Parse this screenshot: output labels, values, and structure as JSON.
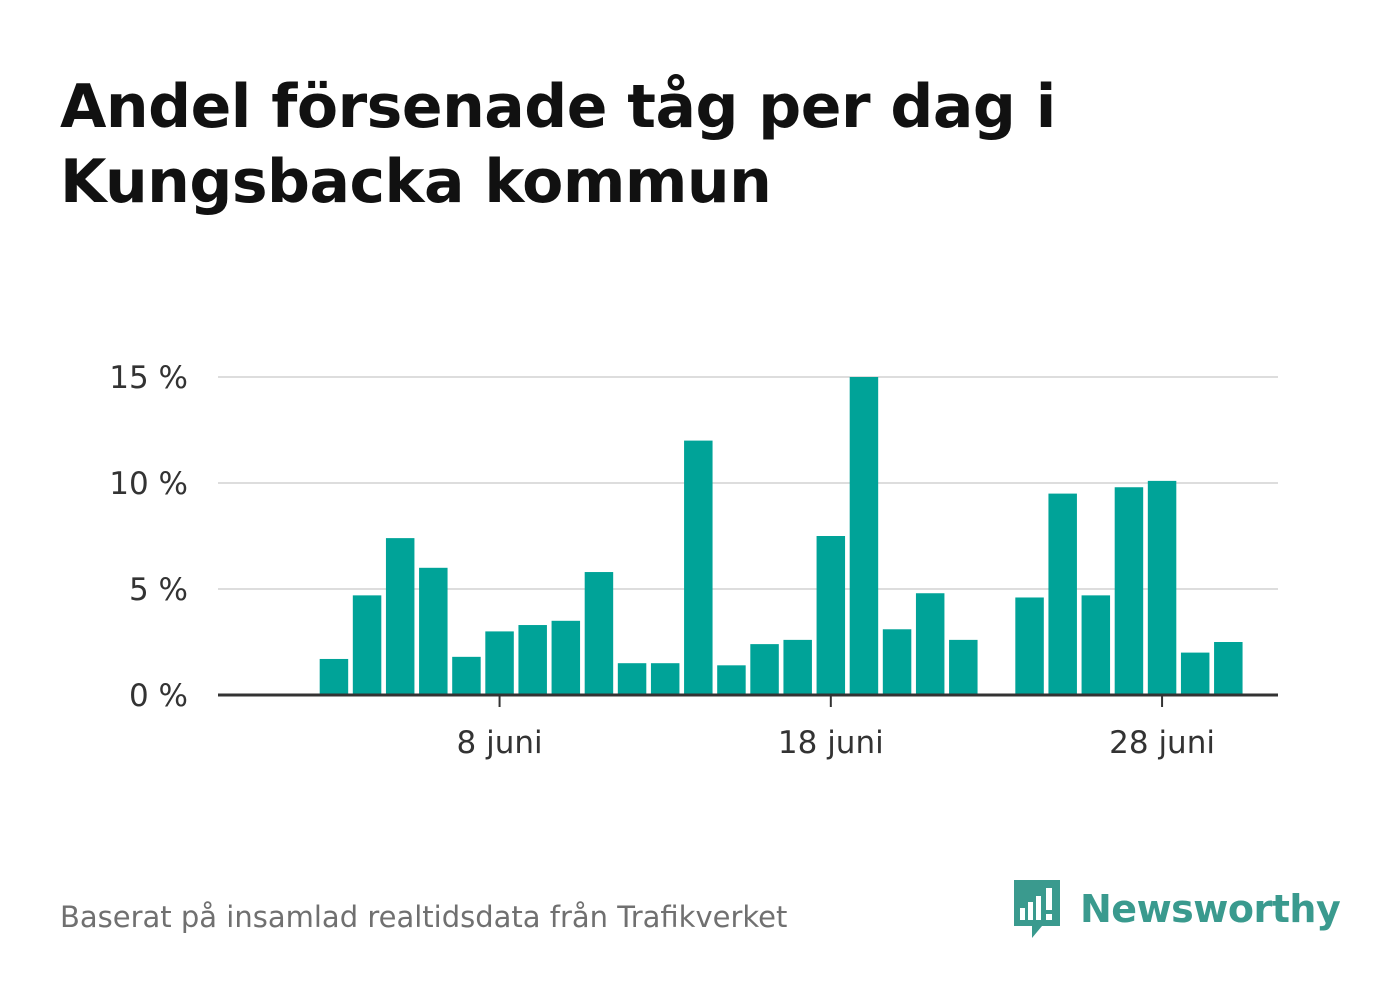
{
  "title": "Andel försenade tåg per dag i Kungsbacka kommun",
  "source": "Baserat på insamlad realtidsdata från Trafikverket",
  "brand": {
    "name": "Newsworthy",
    "logo_icon": "bar-chart-speech-bubble-icon",
    "color": "#3a9a8e"
  },
  "chart_data": {
    "type": "bar",
    "title": "Andel försenade tåg per dag i Kungsbacka kommun",
    "xlabel": "",
    "ylabel": "",
    "bar_color": "#00a398",
    "grid": true,
    "ylim": [
      0,
      15
    ],
    "yticks": [
      {
        "value": 0,
        "label": "0 %"
      },
      {
        "value": 5,
        "label": "5 %"
      },
      {
        "value": 10,
        "label": "10 %"
      },
      {
        "value": 15,
        "label": "15 %"
      }
    ],
    "xlim": [
      -0.5,
      31.5
    ],
    "xticks": [
      {
        "value": 8,
        "label": "8 juni"
      },
      {
        "value": 18,
        "label": "18 juni"
      },
      {
        "value": 28,
        "label": "28 juni"
      }
    ],
    "x": [
      3,
      4,
      5,
      6,
      7,
      8,
      9,
      10,
      11,
      12,
      13,
      14,
      15,
      16,
      17,
      18,
      19,
      20,
      21,
      22,
      23,
      24,
      25,
      26,
      27,
      28,
      29,
      30
    ],
    "values": [
      1.7,
      4.7,
      7.4,
      6.0,
      1.8,
      3.0,
      3.3,
      3.5,
      5.8,
      1.5,
      1.5,
      12.0,
      1.4,
      2.4,
      2.6,
      7.5,
      15.0,
      3.1,
      4.8,
      2.6,
      null,
      4.6,
      9.5,
      4.7,
      9.8,
      10.1,
      2.0,
      2.5
    ]
  }
}
